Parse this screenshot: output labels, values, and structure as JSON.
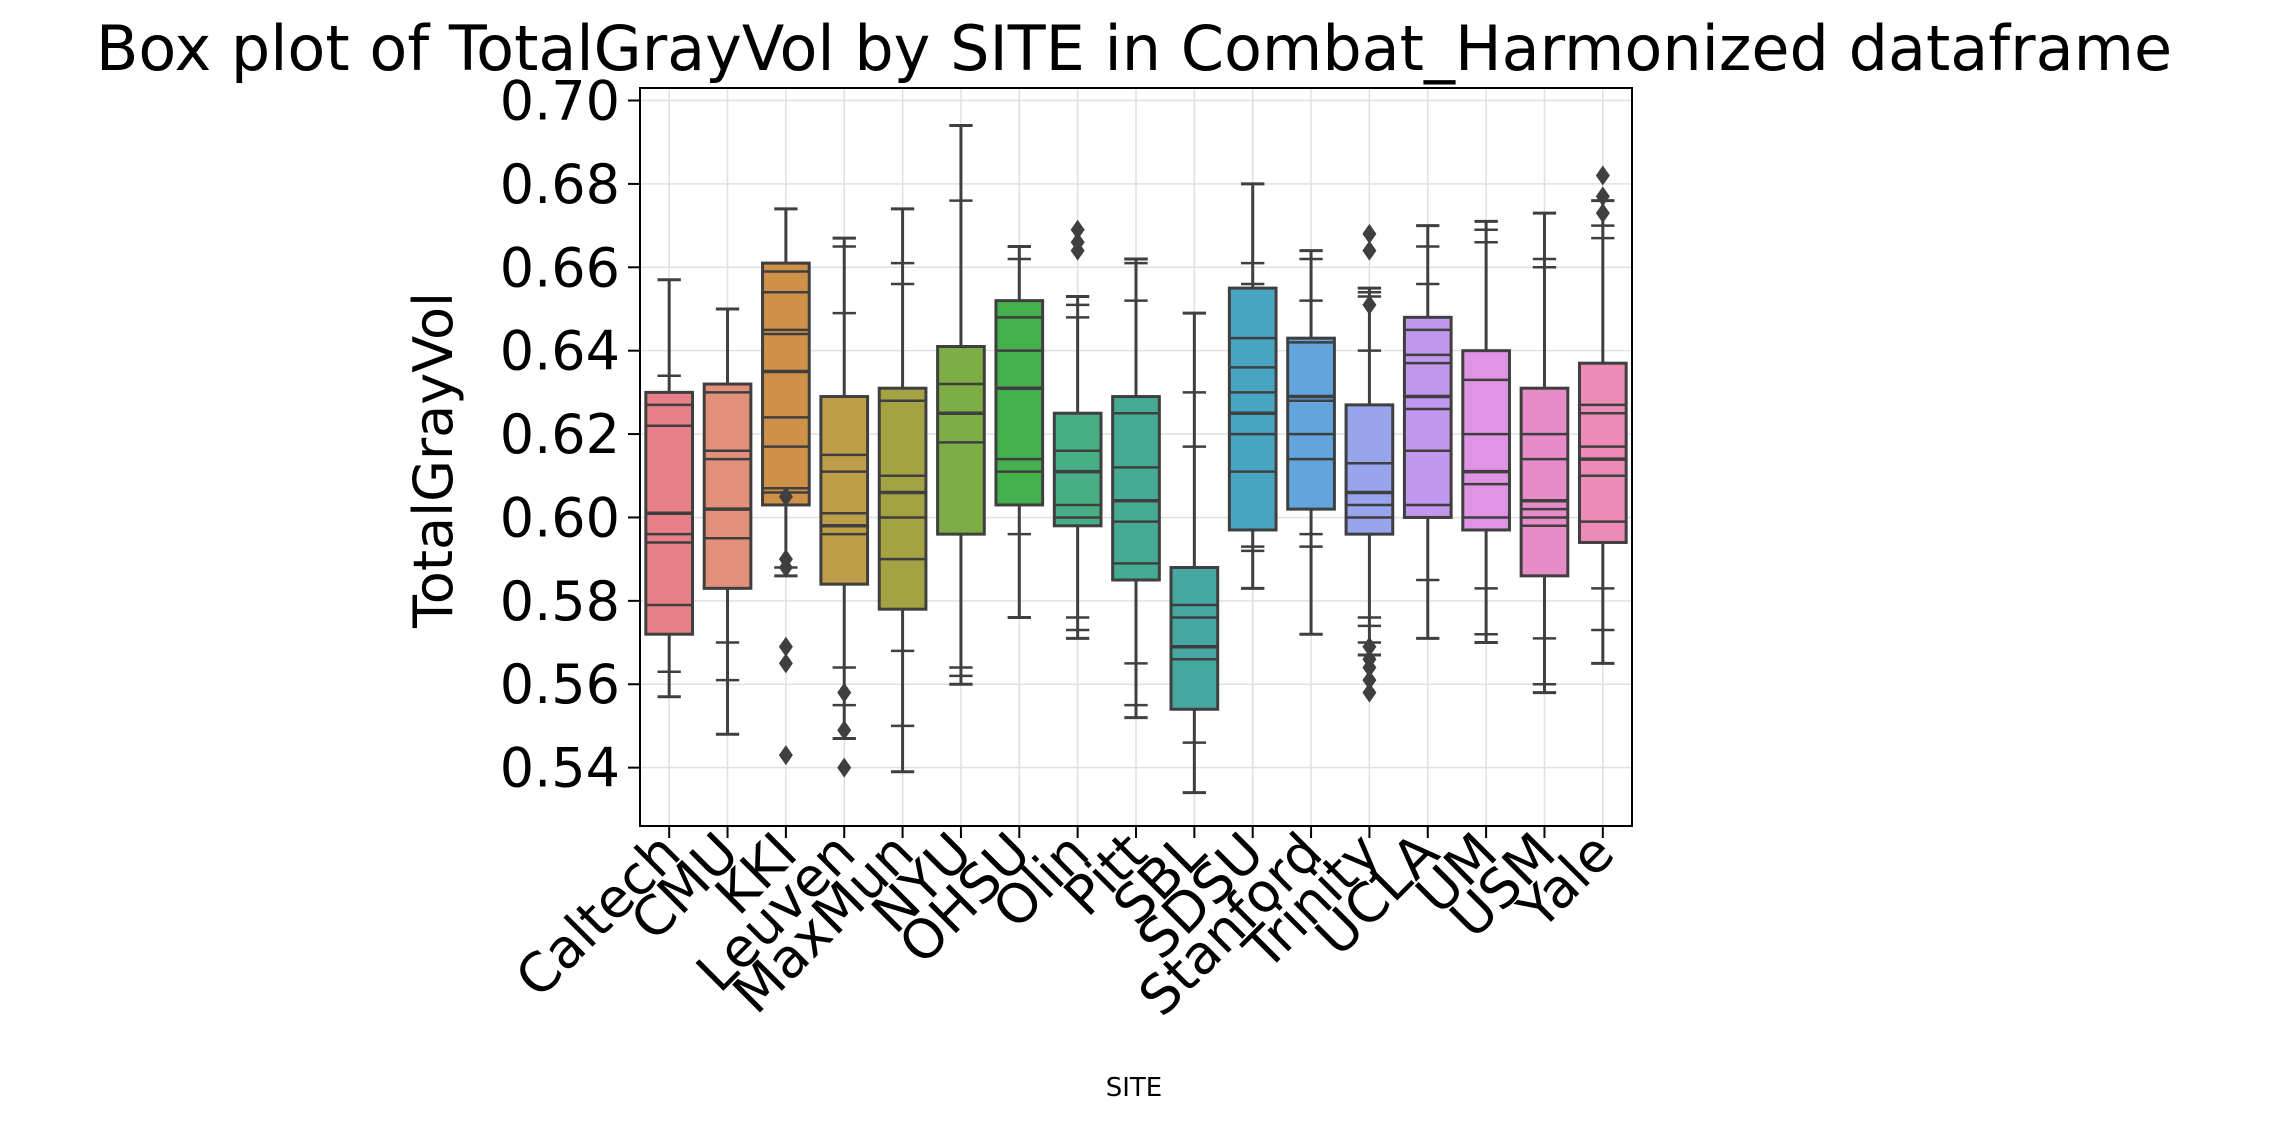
{
  "chart_data": {
    "type": "box",
    "title": "Box plot of TotalGrayVol by SITE in Combat_Harmonized dataframe",
    "xlabel": "SITE",
    "ylabel": "TotalGrayVol",
    "ylim": [
      0.526,
      0.703
    ],
    "yticks": [
      "0.54",
      "0.56",
      "0.58",
      "0.60",
      "0.62",
      "0.64",
      "0.66",
      "0.68",
      "0.70"
    ],
    "grid": true,
    "categories": [
      "Caltech",
      "CMU",
      "KKI",
      "Leuven",
      "MaxMun",
      "NYU",
      "OHSU",
      "Olin",
      "Pitt",
      "SBL",
      "SDSU",
      "Stanford",
      "Trinity",
      "UCLA",
      "UM",
      "USM",
      "Yale"
    ],
    "colors": [
      "#E8808A",
      "#E3907A",
      "#CF9148",
      "#BE9E48",
      "#A3A343",
      "#7CAE45",
      "#45B04E",
      "#48AE85",
      "#45AA93",
      "#46A7A2",
      "#47A5C2",
      "#62A4DE",
      "#98A5EC",
      "#C198EE",
      "#E193E6",
      "#E78CC9",
      "#EC8CB6"
    ],
    "boxes": [
      {
        "whislo": 0.557,
        "q1": 0.572,
        "med": 0.601,
        "q3": 0.63,
        "whishi": 0.657,
        "inner": [
          0.563,
          0.579,
          0.594,
          0.596,
          0.622,
          0.627,
          0.634
        ],
        "fliers": []
      },
      {
        "whislo": 0.548,
        "q1": 0.583,
        "med": 0.602,
        "q3": 0.632,
        "whishi": 0.65,
        "inner": [
          0.561,
          0.57,
          0.595,
          0.614,
          0.616,
          0.63
        ],
        "fliers": []
      },
      {
        "whislo": 0.586,
        "q1": 0.603,
        "med": 0.635,
        "q3": 0.661,
        "whishi": 0.674,
        "inner": [
          0.588,
          0.606,
          0.607,
          0.617,
          0.624,
          0.644,
          0.645,
          0.654,
          0.659
        ],
        "fliers": [
          0.543,
          0.565,
          0.569,
          0.588,
          0.59,
          0.605
        ]
      },
      {
        "whislo": 0.547,
        "q1": 0.584,
        "med": 0.598,
        "q3": 0.629,
        "whishi": 0.667,
        "inner": [
          0.555,
          0.564,
          0.596,
          0.601,
          0.611,
          0.615,
          0.649,
          0.665
        ],
        "fliers": [
          0.54,
          0.549,
          0.558
        ]
      },
      {
        "whislo": 0.539,
        "q1": 0.578,
        "med": 0.606,
        "q3": 0.631,
        "whishi": 0.674,
        "inner": [
          0.55,
          0.568,
          0.59,
          0.6,
          0.61,
          0.628,
          0.656,
          0.661
        ],
        "fliers": []
      },
      {
        "whislo": 0.56,
        "q1": 0.596,
        "med": 0.625,
        "q3": 0.641,
        "whishi": 0.694,
        "inner": [
          0.562,
          0.564,
          0.618,
          0.632,
          0.676
        ],
        "fliers": []
      },
      {
        "whislo": 0.576,
        "q1": 0.603,
        "med": 0.631,
        "q3": 0.652,
        "whishi": 0.665,
        "inner": [
          0.596,
          0.611,
          0.614,
          0.64,
          0.648,
          0.662
        ],
        "fliers": []
      },
      {
        "whislo": 0.571,
        "q1": 0.598,
        "med": 0.611,
        "q3": 0.625,
        "whishi": 0.653,
        "inner": [
          0.573,
          0.576,
          0.6,
          0.603,
          0.616,
          0.648,
          0.651
        ],
        "fliers": [
          0.664,
          0.666,
          0.669
        ]
      },
      {
        "whislo": 0.552,
        "q1": 0.585,
        "med": 0.604,
        "q3": 0.629,
        "whishi": 0.662,
        "inner": [
          0.555,
          0.565,
          0.589,
          0.599,
          0.612,
          0.625,
          0.652,
          0.661,
          0.662
        ],
        "fliers": []
      },
      {
        "whislo": 0.534,
        "q1": 0.554,
        "med": 0.569,
        "q3": 0.588,
        "whishi": 0.649,
        "inner": [
          0.546,
          0.566,
          0.576,
          0.579,
          0.617,
          0.63
        ],
        "fliers": []
      },
      {
        "whislo": 0.583,
        "q1": 0.597,
        "med": 0.625,
        "q3": 0.655,
        "whishi": 0.68,
        "inner": [
          0.592,
          0.593,
          0.611,
          0.62,
          0.63,
          0.636,
          0.643,
          0.655,
          0.656,
          0.661
        ],
        "fliers": []
      },
      {
        "whislo": 0.572,
        "q1": 0.602,
        "med": 0.629,
        "q3": 0.643,
        "whishi": 0.664,
        "inner": [
          0.593,
          0.596,
          0.614,
          0.62,
          0.628,
          0.642,
          0.652,
          0.662
        ],
        "fliers": []
      },
      {
        "whislo": 0.567,
        "q1": 0.596,
        "med": 0.606,
        "q3": 0.627,
        "whishi": 0.655,
        "inner": [
          0.57,
          0.574,
          0.576,
          0.6,
          0.603,
          0.613,
          0.64,
          0.653,
          0.654
        ],
        "fliers": [
          0.558,
          0.561,
          0.564,
          0.566,
          0.569,
          0.651,
          0.664,
          0.668
        ]
      },
      {
        "whislo": 0.571,
        "q1": 0.6,
        "med": 0.629,
        "q3": 0.648,
        "whishi": 0.67,
        "inner": [
          0.585,
          0.603,
          0.616,
          0.626,
          0.637,
          0.639,
          0.645,
          0.656,
          0.665
        ],
        "fliers": []
      },
      {
        "whislo": 0.57,
        "q1": 0.597,
        "med": 0.611,
        "q3": 0.64,
        "whishi": 0.671,
        "inner": [
          0.572,
          0.583,
          0.6,
          0.608,
          0.62,
          0.633,
          0.666,
          0.669
        ],
        "fliers": []
      },
      {
        "whislo": 0.558,
        "q1": 0.586,
        "med": 0.604,
        "q3": 0.631,
        "whishi": 0.673,
        "inner": [
          0.56,
          0.571,
          0.598,
          0.6,
          0.602,
          0.614,
          0.62,
          0.66,
          0.662
        ],
        "fliers": []
      },
      {
        "whislo": 0.565,
        "q1": 0.594,
        "med": 0.614,
        "q3": 0.637,
        "whishi": 0.676,
        "inner": [
          0.573,
          0.583,
          0.599,
          0.61,
          0.617,
          0.625,
          0.627,
          0.667,
          0.67
        ],
        "fliers": [
          0.673,
          0.677,
          0.682
        ]
      }
    ]
  }
}
